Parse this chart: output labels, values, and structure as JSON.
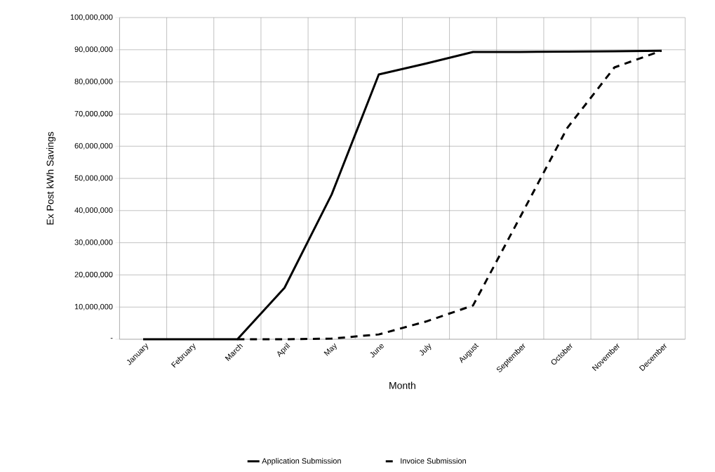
{
  "chart_data": {
    "type": "line",
    "xlabel": "Month",
    "ylabel": "Ex Post kWh Savings",
    "categories": [
      "January",
      "February",
      "March",
      "April",
      "May",
      "June",
      "July",
      "August",
      "September",
      "October",
      "November",
      "December"
    ],
    "series": [
      {
        "name": "Application Submission",
        "color": "#000000",
        "line_style": "solid",
        "values": [
          0,
          0,
          0,
          16000000,
          45000000,
          82300000,
          85700000,
          89300000,
          89300000,
          89400000,
          89500000,
          89700000
        ]
      },
      {
        "name": "Invoice Submission",
        "color": "#000000",
        "line_style": "dashed",
        "values": [
          null,
          null,
          0,
          0,
          200000,
          1500000,
          5500000,
          10500000,
          38000000,
          65700000,
          84500000,
          89700000
        ]
      }
    ],
    "ylim": [
      0,
      100000000
    ],
    "yticks": [
      {
        "value": 0,
        "label": "-"
      },
      {
        "value": 10000000,
        "label": "10,000,000"
      },
      {
        "value": 20000000,
        "label": "20,000,000"
      },
      {
        "value": 30000000,
        "label": "30,000,000"
      },
      {
        "value": 40000000,
        "label": "40,000,000"
      },
      {
        "value": 50000000,
        "label": "50,000,000"
      },
      {
        "value": 60000000,
        "label": "60,000,000"
      },
      {
        "value": 70000000,
        "label": "70,000,000"
      },
      {
        "value": 80000000,
        "label": "80,000,000"
      },
      {
        "value": 90000000,
        "label": "90,000,000"
      },
      {
        "value": 100000000,
        "label": "100,000,000"
      }
    ],
    "grid": true,
    "legend": "bottom",
    "marker": "none"
  }
}
